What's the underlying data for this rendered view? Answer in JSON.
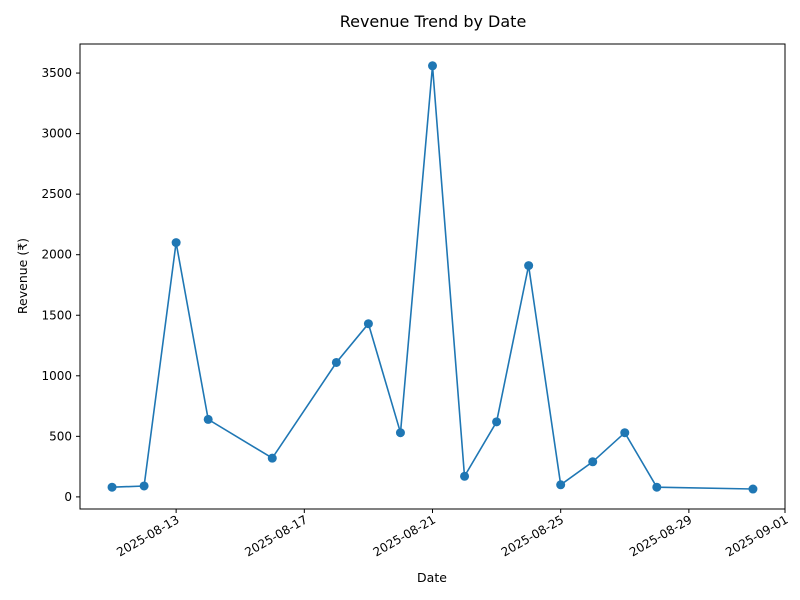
{
  "chart_data": {
    "type": "line",
    "title": "Revenue Trend by Date",
    "xlabel": "Date",
    "ylabel": "Revenue (₹)",
    "x_axis_type": "date",
    "xlim": [
      "2025-08-10",
      "2025-09-01"
    ],
    "ylim": [
      -100,
      3740
    ],
    "x_ticks": [
      "2025-08-13",
      "2025-08-17",
      "2025-08-21",
      "2025-08-25",
      "2025-08-29",
      "2025-09-01"
    ],
    "y_ticks": [
      0,
      500,
      1000,
      1500,
      2000,
      2500,
      3000,
      3500
    ],
    "grid": false,
    "legend": "none",
    "series": [
      {
        "color": "#1f77b4",
        "marker": "circle",
        "points": [
          {
            "x": "2025-08-11",
            "y": 80
          },
          {
            "x": "2025-08-12",
            "y": 90
          },
          {
            "x": "2025-08-13",
            "y": 2100
          },
          {
            "x": "2025-08-14",
            "y": 640
          },
          {
            "x": "2025-08-16",
            "y": 320
          },
          {
            "x": "2025-08-18",
            "y": 1110
          },
          {
            "x": "2025-08-19",
            "y": 1430
          },
          {
            "x": "2025-08-20",
            "y": 530
          },
          {
            "x": "2025-08-21",
            "y": 3560
          },
          {
            "x": "2025-08-22",
            "y": 170
          },
          {
            "x": "2025-08-23",
            "y": 620
          },
          {
            "x": "2025-08-24",
            "y": 1910
          },
          {
            "x": "2025-08-25",
            "y": 100
          },
          {
            "x": "2025-08-26",
            "y": 290
          },
          {
            "x": "2025-08-27",
            "y": 530
          },
          {
            "x": "2025-08-28",
            "y": 80
          },
          {
            "x": "2025-08-31",
            "y": 65
          }
        ]
      }
    ]
  }
}
